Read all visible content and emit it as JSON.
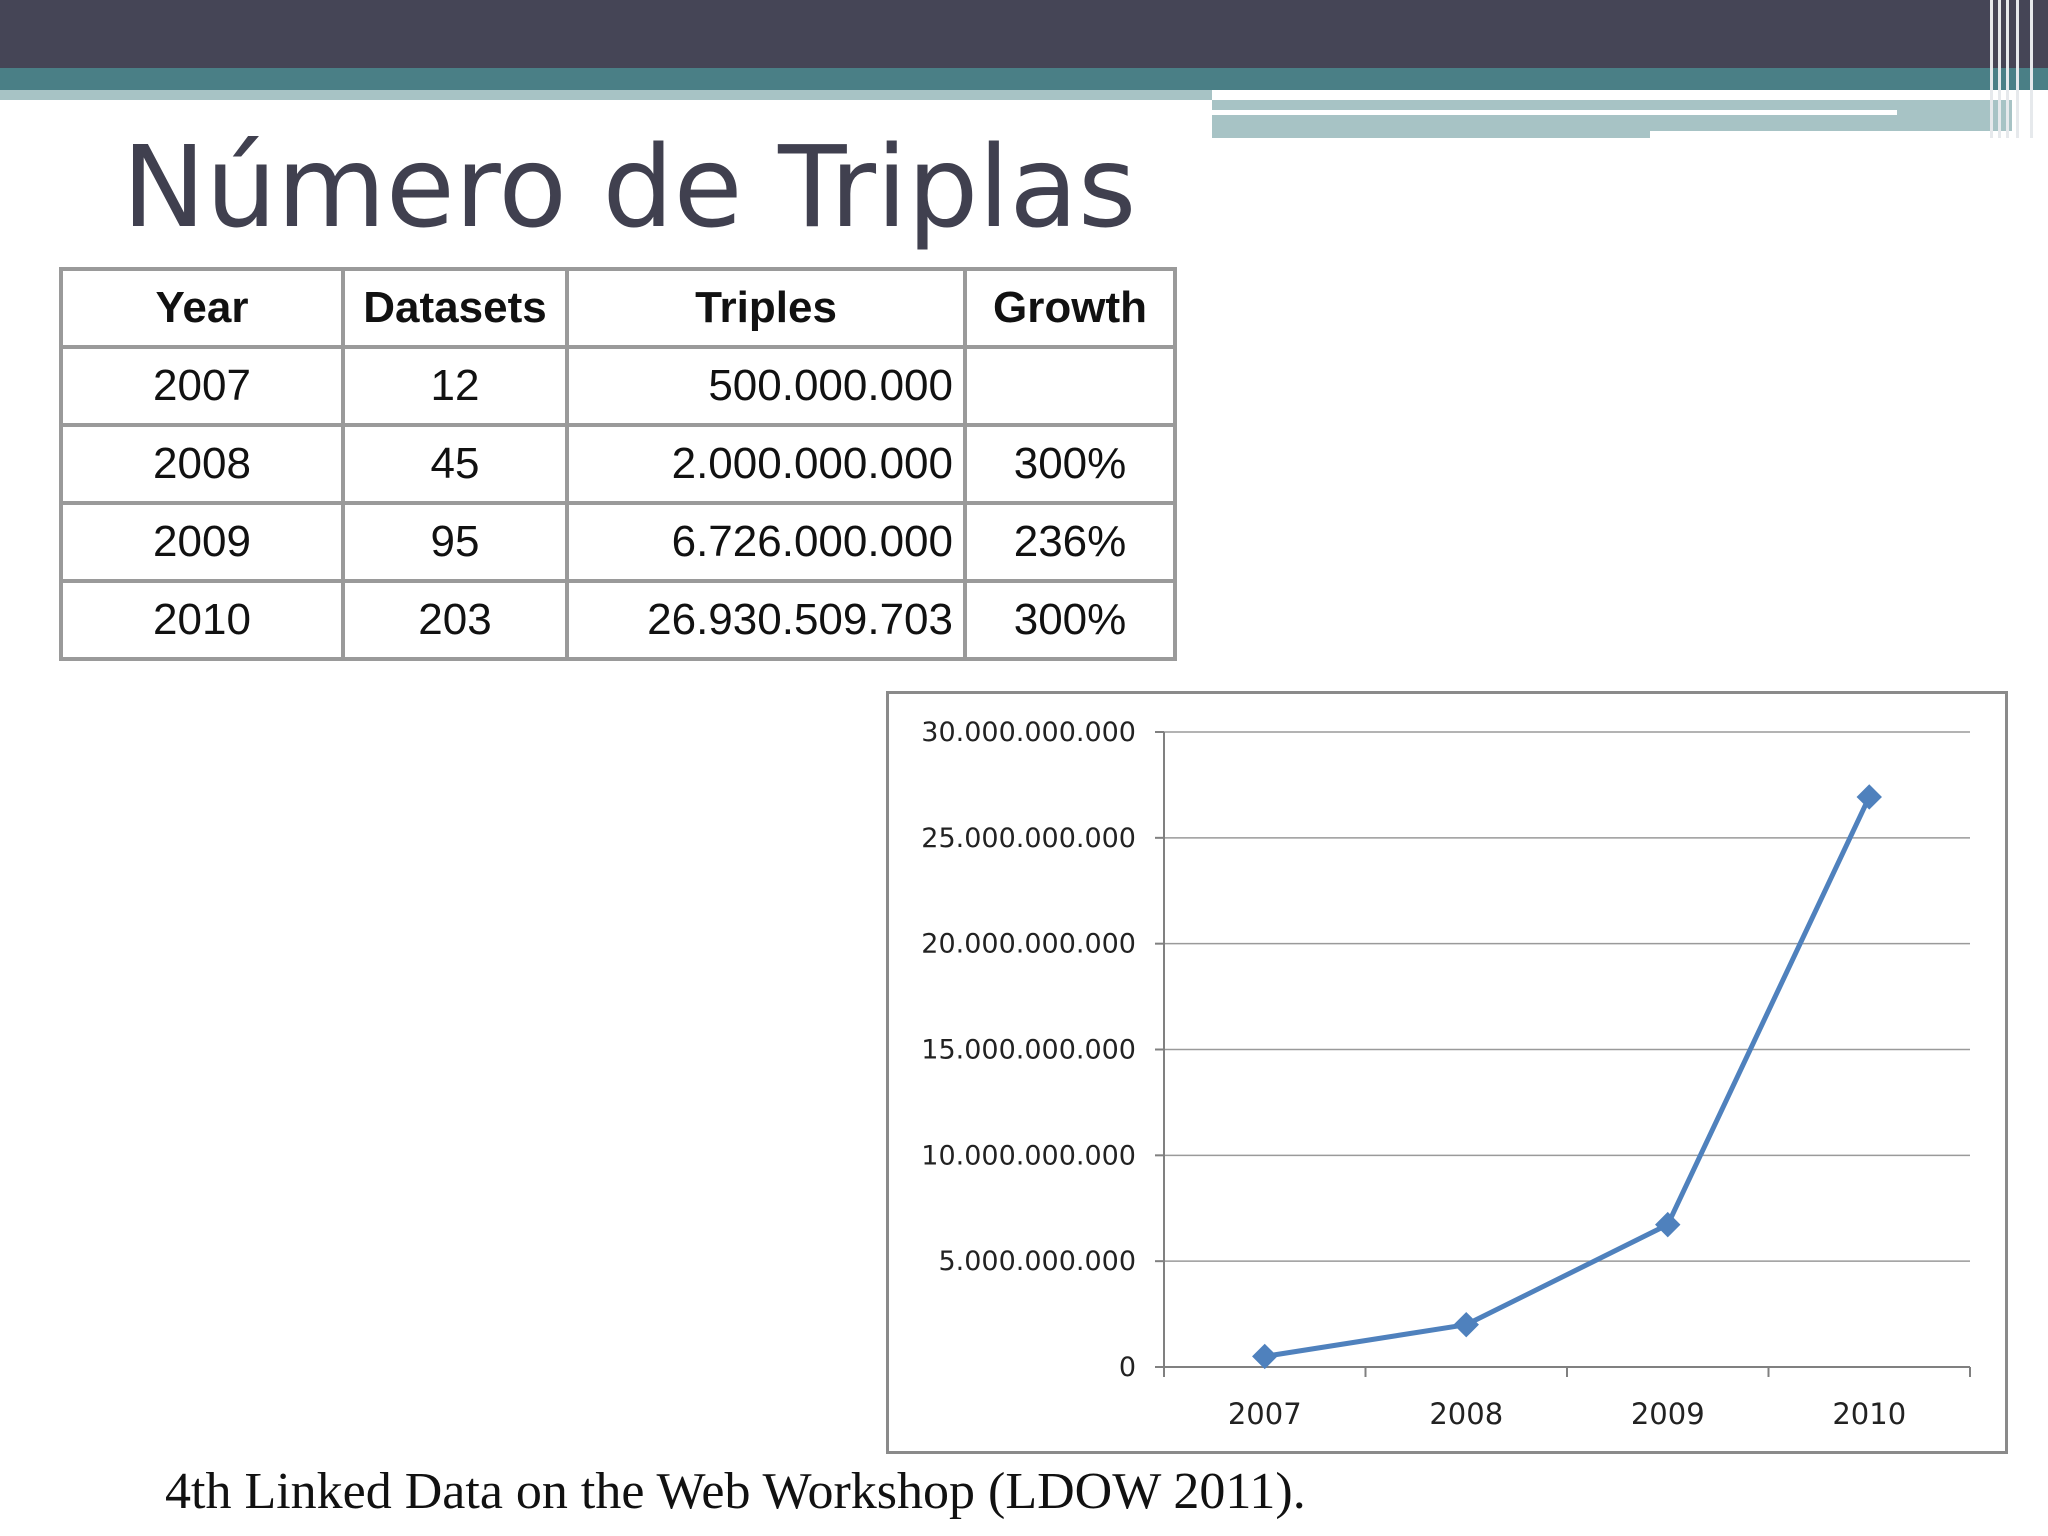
{
  "slide": {
    "title": "Número de Triplas",
    "source": "4th Linked Data on the Web Workshop (LDOW 2011).",
    "colors": {
      "dark_bar": "#454556",
      "teal_bar": "#4a7f86",
      "light_bar": "#a7c3c5",
      "line": "#4f81bd",
      "title": "#40404f"
    }
  },
  "table": {
    "headers": [
      "Year",
      "Datasets",
      "Triples",
      "Growth"
    ],
    "rows": [
      [
        "2007",
        "12",
        "500.000.000",
        ""
      ],
      [
        "2008",
        "45",
        "2.000.000.000",
        "300%"
      ],
      [
        "2009",
        "95",
        "6.726.000.000",
        "236%"
      ],
      [
        "2010",
        "203",
        "26.930.509.703",
        "300%"
      ]
    ]
  },
  "chart_data": {
    "type": "line",
    "x": [
      "2007",
      "2008",
      "2009",
      "2010"
    ],
    "series": [
      {
        "values": [
          500000000,
          2000000000,
          6726000000,
          26930509703
        ]
      }
    ],
    "yticks": [
      "0",
      "5.000.000.000",
      "10.000.000.000",
      "15.000.000.000",
      "20.000.000.000",
      "25.000.000.000",
      "30.000.000.000"
    ],
    "ylim": [
      0,
      30000000000
    ],
    "grid": true,
    "legend": "none",
    "marker": "diamond"
  }
}
